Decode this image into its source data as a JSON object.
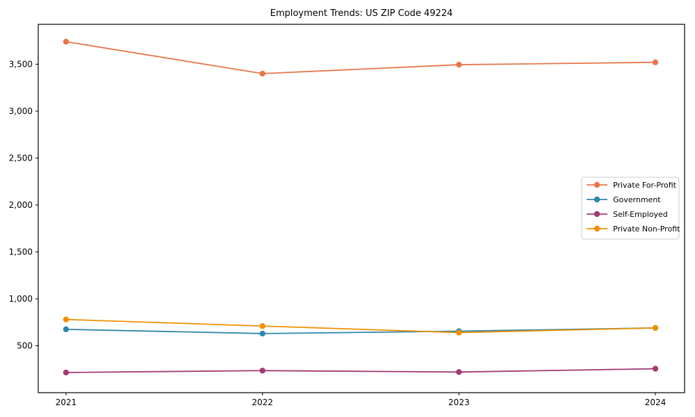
{
  "chart_data": {
    "type": "line",
    "title": "Employment Trends: US ZIP Code 49224",
    "categories": [
      "2021",
      "2022",
      "2023",
      "2024"
    ],
    "series": [
      {
        "name": "Private For-Profit",
        "color": "#E8764B",
        "values": [
          3740,
          3400,
          3495,
          3520
        ]
      },
      {
        "name": "Government",
        "color": "#2E86AB",
        "values": [
          675,
          630,
          655,
          690
        ]
      },
      {
        "name": "Self-Employed",
        "color": "#A23B72",
        "values": [
          215,
          235,
          220,
          255
        ]
      },
      {
        "name": "Private Non-Profit",
        "color": "#F18F01",
        "values": [
          780,
          710,
          640,
          690
        ]
      }
    ],
    "xlabel": "",
    "ylabel": "",
    "xlim_categories": [
      "2021",
      "2024"
    ],
    "ylim": [
      0,
      3925
    ],
    "y_ticks": [
      500,
      1000,
      1500,
      2000,
      2500,
      3000,
      3500
    ],
    "y_tick_labels": [
      "500",
      "1,000",
      "1,500",
      "2,000",
      "2,500",
      "3,000",
      "3,500"
    ],
    "grid": false,
    "legend_position": "center-right",
    "marker": "circle",
    "axis_color": "#000000",
    "legend_border_color": "#cccccc",
    "background_color": "#ffffff"
  }
}
